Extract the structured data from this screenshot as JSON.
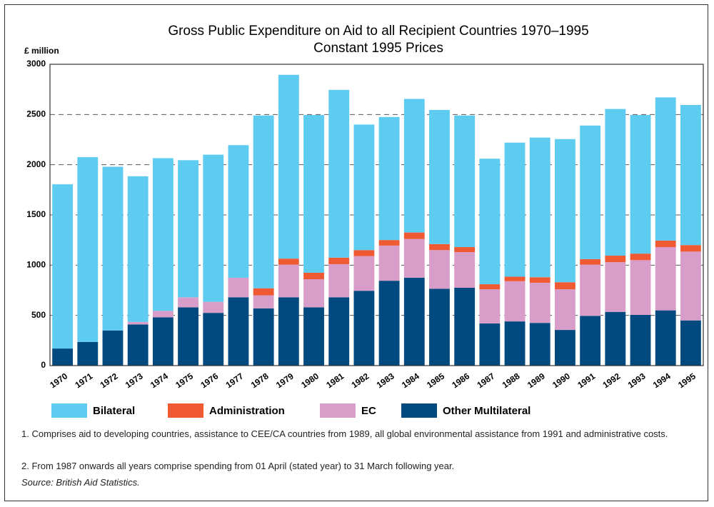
{
  "chart_data": {
    "type": "stacked-bar",
    "title": "Gross Public Expenditure on Aid to all Recipient Countries  1970–1995",
    "subtitle": "Constant 1995 Prices",
    "y_label": "£ million",
    "categories": [
      "1970",
      "1971",
      "1972",
      "1973",
      "1974",
      "1975",
      "1976",
      "1977",
      "1978",
      "1979",
      "1980",
      "1981",
      "1982",
      "1983",
      "1984",
      "1985",
      "1986",
      "1987",
      "1988",
      "1989",
      "1990",
      "1991",
      "1992",
      "1993",
      "1994",
      "1995"
    ],
    "series": [
      {
        "name": "Other Multilateral",
        "color": "#004a80",
        "values": [
          170,
          235,
          350,
          410,
          480,
          580,
          525,
          680,
          570,
          680,
          580,
          680,
          745,
          845,
          875,
          765,
          775,
          420,
          440,
          425,
          355,
          495,
          535,
          505,
          550,
          450
        ]
      },
      {
        "name": "EC",
        "color": "#d89dc8",
        "values": [
          0,
          0,
          0,
          25,
          65,
          100,
          110,
          195,
          130,
          325,
          280,
          330,
          345,
          350,
          385,
          385,
          355,
          340,
          400,
          400,
          405,
          510,
          495,
          545,
          630,
          685
        ]
      },
      {
        "name": "Administration",
        "color": "#f05a32",
        "values": [
          0,
          0,
          0,
          0,
          0,
          0,
          0,
          0,
          70,
          60,
          65,
          65,
          60,
          55,
          65,
          60,
          50,
          50,
          45,
          55,
          70,
          55,
          65,
          65,
          65,
          65
        ]
      },
      {
        "name": "Bilateral",
        "color": "#5ecbf1",
        "values": [
          1635,
          1840,
          1630,
          1450,
          1520,
          1365,
          1465,
          1320,
          1720,
          1830,
          1570,
          1670,
          1250,
          1225,
          1330,
          1335,
          1310,
          1250,
          1335,
          1390,
          1425,
          1330,
          1460,
          1380,
          1425,
          1395
        ]
      }
    ],
    "ylim": [
      0,
      3000
    ],
    "yticks": [
      0,
      500,
      1000,
      1500,
      2000,
      2500,
      3000
    ],
    "grid": true,
    "notes": [
      "1. Comprises aid to developing countries, assistance to CEE/CA countries from 1989, all global environmental assistance from 1991 and administrative costs.",
      "2. From 1987 onwards all years comprise spending from 01 April (stated year) to 31 March following year."
    ],
    "source": "Source: British Aid Statistics."
  }
}
